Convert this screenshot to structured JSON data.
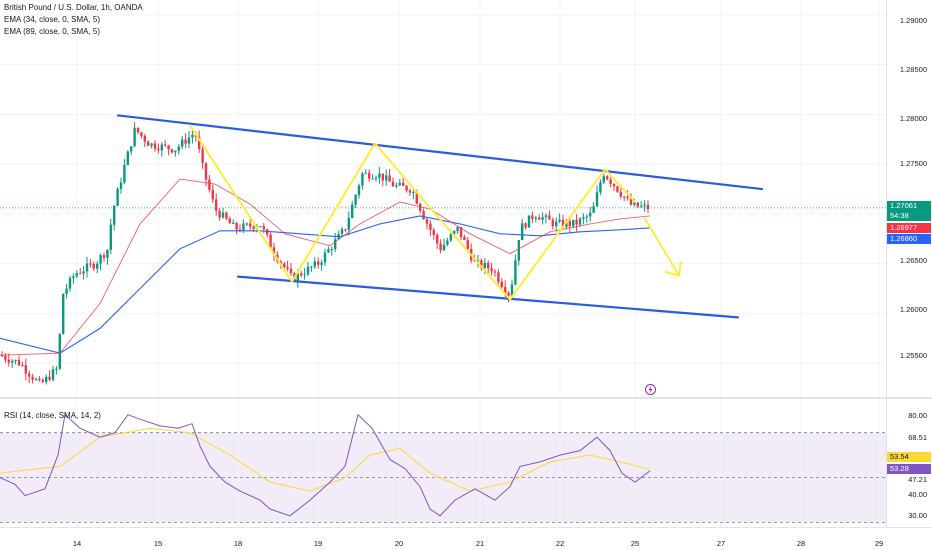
{
  "chart_header": {
    "symbol_line": "British Pound / U.S. Dollar, 1h, OANDA",
    "ema_fast_line": "EMA (34, close, 0, SMA, 5)",
    "ema_slow_line": "EMA (89, close, 0, SMA, 5)"
  },
  "rsi_header": {
    "indicator_line": "RSI (14, close, SMA, 14, 2)"
  },
  "price_axis": {
    "ticks": [
      "1.29000",
      "1.28500",
      "1.28000",
      "1.27500",
      "1.26500",
      "1.26000",
      "1.25500"
    ],
    "last_price": "1.27061",
    "countdown": "54:38",
    "ema_fast_value": "1.26977",
    "ema_slow_value": "1.26860"
  },
  "rsi_axis": {
    "ticks": [
      "80.00",
      "68.51",
      "47.21",
      "40.00",
      "30.00"
    ],
    "rsi_ma_value": "53.54",
    "rsi_value": "53.28"
  },
  "time_axis": {
    "labels": [
      "14",
      "15",
      "18",
      "19",
      "20",
      "21",
      "22",
      "25",
      "27",
      "28",
      "29"
    ]
  },
  "icons": {
    "alert": "flash-icon"
  },
  "colors": {
    "bull": "#089981",
    "bear": "#f23645",
    "ema_fast": "#f23645",
    "ema_slow": "#2962ff",
    "channel": "#2a5cdf",
    "pattern": "#ffeb3b",
    "rsi_line": "#7e57c2",
    "rsi_ma": "#fdd835",
    "rsi_band": "#ede7f6"
  },
  "chart_data": {
    "type": "candlestick",
    "symbol": "British Pound / U.S. Dollar",
    "interval": "1h",
    "ylim": [
      1.2515,
      1.2915
    ],
    "price_path": [
      [
        0,
        1.2558
      ],
      [
        20,
        1.255
      ],
      [
        40,
        1.2528
      ],
      [
        58,
        1.2545
      ],
      [
        62,
        1.2618
      ],
      [
        75,
        1.264
      ],
      [
        95,
        1.265
      ],
      [
        108,
        1.2665
      ],
      [
        112,
        1.27
      ],
      [
        125,
        1.275
      ],
      [
        135,
        1.2785
      ],
      [
        150,
        1.277
      ],
      [
        175,
        1.2765
      ],
      [
        195,
        1.2782
      ],
      [
        203,
        1.2745
      ],
      [
        215,
        1.2705
      ],
      [
        235,
        1.2685
      ],
      [
        260,
        1.269
      ],
      [
        275,
        1.266
      ],
      [
        292,
        1.2635
      ],
      [
        318,
        1.265
      ],
      [
        345,
        1.2685
      ],
      [
        362,
        1.274
      ],
      [
        378,
        1.274
      ],
      [
        395,
        1.2728
      ],
      [
        412,
        1.2725
      ],
      [
        425,
        1.2695
      ],
      [
        440,
        1.2665
      ],
      [
        458,
        1.2685
      ],
      [
        475,
        1.265
      ],
      [
        492,
        1.2645
      ],
      [
        510,
        1.2618
      ],
      [
        520,
        1.2685
      ],
      [
        535,
        1.27
      ],
      [
        555,
        1.269
      ],
      [
        575,
        1.269
      ],
      [
        592,
        1.27
      ],
      [
        603,
        1.2742
      ],
      [
        615,
        1.2728
      ],
      [
        632,
        1.2708
      ],
      [
        650,
        1.2706
      ]
    ],
    "ema34": [
      [
        0,
        1.2558
      ],
      [
        60,
        1.256
      ],
      [
        100,
        1.261
      ],
      [
        140,
        1.269
      ],
      [
        180,
        1.2735
      ],
      [
        215,
        1.273
      ],
      [
        250,
        1.271
      ],
      [
        285,
        1.268
      ],
      [
        330,
        1.2668
      ],
      [
        360,
        1.269
      ],
      [
        400,
        1.2712
      ],
      [
        430,
        1.2705
      ],
      [
        470,
        1.268
      ],
      [
        510,
        1.266
      ],
      [
        550,
        1.2682
      ],
      [
        590,
        1.269
      ],
      [
        620,
        1.2695
      ],
      [
        650,
        1.2698
      ]
    ],
    "ema89": [
      [
        0,
        1.2575
      ],
      [
        60,
        1.256
      ],
      [
        100,
        1.2585
      ],
      [
        140,
        1.2625
      ],
      [
        180,
        1.2665
      ],
      [
        220,
        1.2683
      ],
      [
        260,
        1.2683
      ],
      [
        300,
        1.268
      ],
      [
        340,
        1.2677
      ],
      [
        380,
        1.269
      ],
      [
        420,
        1.2698
      ],
      [
        460,
        1.269
      ],
      [
        500,
        1.268
      ],
      [
        540,
        1.2678
      ],
      [
        580,
        1.2682
      ],
      [
        620,
        1.2684
      ],
      [
        650,
        1.2686
      ]
    ],
    "drawings": {
      "channel_upper": [
        [
          118,
          1.2799
        ],
        [
          762,
          1.2725
        ]
      ],
      "channel_lower": [
        [
          238,
          1.2637
        ],
        [
          738,
          1.2596
        ]
      ],
      "zigzag": [
        [
          190,
          1.2789
        ],
        [
          292,
          1.2632
        ],
        [
          375,
          1.2771
        ],
        [
          425,
          1.2712
        ],
        [
          510,
          1.2614
        ],
        [
          605,
          1.2745
        ],
        [
          635,
          1.2712
        ]
      ],
      "projection": [
        [
          645,
          1.2695
        ],
        [
          678,
          1.264
        ]
      ]
    },
    "rsi": {
      "ylim": [
        28,
        85
      ],
      "levels": [
        70,
        50,
        30
      ],
      "values": [
        [
          0,
          50
        ],
        [
          15,
          47
        ],
        [
          25,
          42
        ],
        [
          45,
          45
        ],
        [
          58,
          60
        ],
        [
          65,
          78
        ],
        [
          80,
          72
        ],
        [
          100,
          68
        ],
        [
          115,
          70
        ],
        [
          128,
          78
        ],
        [
          140,
          76
        ],
        [
          160,
          73
        ],
        [
          178,
          72
        ],
        [
          192,
          74
        ],
        [
          200,
          64
        ],
        [
          210,
          55
        ],
        [
          225,
          48
        ],
        [
          240,
          44
        ],
        [
          260,
          40
        ],
        [
          270,
          36
        ],
        [
          290,
          33
        ],
        [
          310,
          40
        ],
        [
          330,
          48
        ],
        [
          345,
          55
        ],
        [
          358,
          78
        ],
        [
          372,
          72
        ],
        [
          390,
          58
        ],
        [
          405,
          54
        ],
        [
          420,
          46
        ],
        [
          430,
          36
        ],
        [
          440,
          33
        ],
        [
          455,
          40
        ],
        [
          475,
          45
        ],
        [
          495,
          40
        ],
        [
          510,
          46
        ],
        [
          520,
          55
        ],
        [
          540,
          57
        ],
        [
          560,
          60
        ],
        [
          580,
          62
        ],
        [
          597,
          68
        ],
        [
          610,
          62
        ],
        [
          622,
          52
        ],
        [
          635,
          48
        ],
        [
          650,
          53
        ]
      ],
      "ma": [
        [
          0,
          52
        ],
        [
          60,
          55
        ],
        [
          100,
          68
        ],
        [
          150,
          72
        ],
        [
          190,
          70
        ],
        [
          230,
          60
        ],
        [
          270,
          48
        ],
        [
          310,
          44
        ],
        [
          345,
          50
        ],
        [
          370,
          60
        ],
        [
          400,
          63
        ],
        [
          430,
          52
        ],
        [
          470,
          44
        ],
        [
          510,
          48
        ],
        [
          550,
          57
        ],
        [
          590,
          60
        ],
        [
          630,
          56
        ],
        [
          650,
          53.5
        ]
      ]
    }
  }
}
